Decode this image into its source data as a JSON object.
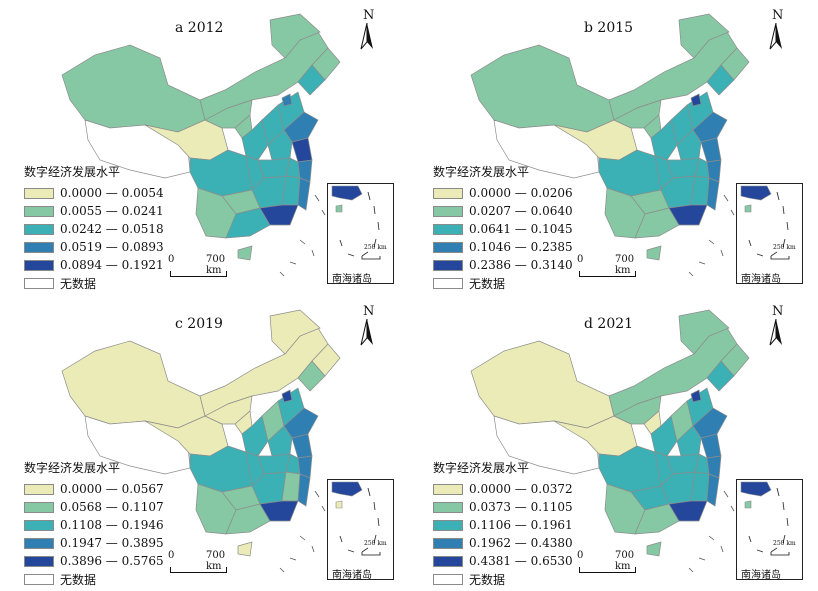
{
  "legend_title": "数字经济发展水平",
  "no_data_label": "无数据",
  "north_label": "N",
  "scale_bar": {
    "zero": "0",
    "distance": "700 km"
  },
  "inset": {
    "name": "南海诸岛",
    "scale": "250 km"
  },
  "colors": {
    "class1": "#ebebb8",
    "class2": "#86c8a3",
    "class3": "#3bb0b5",
    "class4": "#2f7fb2",
    "class5": "#24479c",
    "no_data": "#ffffff",
    "border": "#8c8c8c"
  },
  "panels": [
    {
      "title": "a 2012",
      "classes": [
        "0.0000 — 0.0054",
        "0.0055 — 0.0241",
        "0.0242 — 0.0518",
        "0.0519 — 0.0893",
        "0.0894 — 0.1921"
      ]
    },
    {
      "title": "b 2015",
      "classes": [
        "0.0000 — 0.0206",
        "0.0207 — 0.0640",
        "0.0641 — 0.1045",
        "0.1046 — 0.2385",
        "0.2386 — 0.3140"
      ]
    },
    {
      "title": "c 2019",
      "classes": [
        "0.0000 — 0.0567",
        "0.0568 — 0.1107",
        "0.1108 — 0.1946",
        "0.1947 — 0.3895",
        "0.3896 — 0.5765"
      ]
    },
    {
      "title": "d 2021",
      "classes": [
        "0.0000 — 0.0372",
        "0.0373 — 0.1105",
        "0.1106 — 0.1961",
        "0.1962 — 0.4380",
        "0.4381 — 0.6530"
      ]
    }
  ]
}
